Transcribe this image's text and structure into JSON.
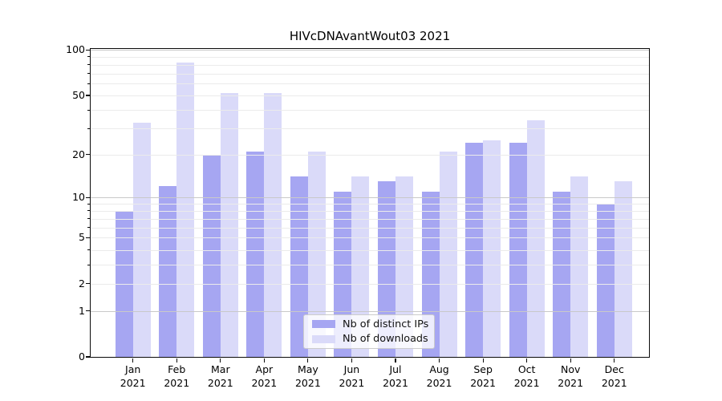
{
  "title": "HIVcDNAvantWout03 2021",
  "chart_data": {
    "type": "bar",
    "months": [
      "Jan",
      "Feb",
      "Mar",
      "Apr",
      "May",
      "Jun",
      "Jul",
      "Aug",
      "Sep",
      "Oct",
      "Nov",
      "Dec"
    ],
    "year": "2021",
    "series": [
      {
        "name": "Nb of distinct IPs",
        "color": "#a6a6f2",
        "values": [
          8,
          12,
          20,
          21,
          14,
          11,
          13,
          11,
          24,
          24,
          11,
          9
        ]
      },
      {
        "name": "Nb of downloads",
        "color": "#dadaf9",
        "values": [
          33,
          83,
          52,
          52,
          21,
          14,
          14,
          21,
          25,
          34,
          14,
          13
        ]
      }
    ],
    "yscale": "log1p",
    "ylim": [
      0,
      101.6
    ],
    "yticks": [
      0,
      1,
      2,
      5,
      10,
      20,
      50,
      100
    ],
    "minor_gridlines": [
      2,
      3,
      4,
      5,
      6,
      7,
      8,
      9,
      20,
      30,
      40,
      50,
      60,
      70,
      80,
      90
    ],
    "major_gridlines": [
      1,
      10,
      100
    ],
    "grid": "both",
    "legend_position": "lower center"
  },
  "colors": {
    "grid_major": "#c9c9c9",
    "grid_minor": "#ebebeb",
    "spine": "#0a0a0a",
    "background": "#ffffff"
  }
}
